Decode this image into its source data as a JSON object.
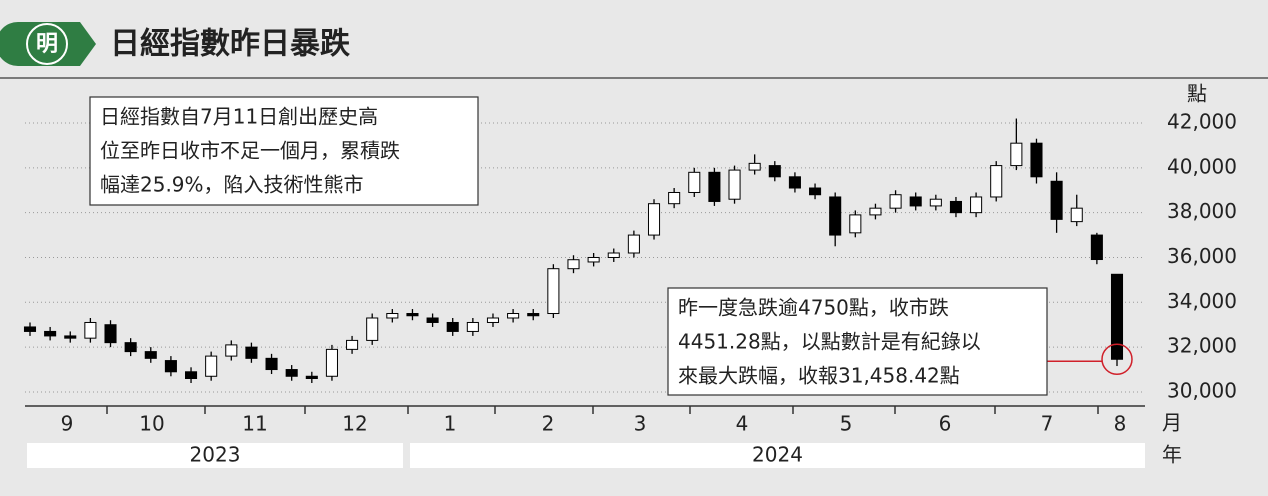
{
  "header": {
    "logo": "明",
    "title": "日經指數昨日暴跌"
  },
  "chart_data": {
    "type": "candlestick",
    "y_label": "點",
    "x_unit": "月",
    "year_unit": "年",
    "ylim": [
      29400,
      43000
    ],
    "yticks": [
      {
        "value": 30000,
        "label": "30,000"
      },
      {
        "value": 32000,
        "label": "32,000"
      },
      {
        "value": 34000,
        "label": "34,000"
      },
      {
        "value": 36000,
        "label": "36,000"
      },
      {
        "value": 38000,
        "label": "38,000"
      },
      {
        "value": 40000,
        "label": "40,000"
      },
      {
        "value": 42000,
        "label": "42,000"
      }
    ],
    "grid": true,
    "months": [
      "9",
      "10",
      "11",
      "12",
      "1",
      "2",
      "3",
      "4",
      "5",
      "6",
      "7",
      "8"
    ],
    "years": [
      "2023",
      "2024"
    ],
    "open": [
      32900,
      32700,
      32500,
      32400,
      33000,
      32200,
      31800,
      31400,
      30900,
      30700,
      31600,
      32000,
      31500,
      31000,
      30700,
      30700,
      31900,
      32300,
      33300,
      33500,
      33300,
      33100,
      32700,
      33100,
      33300,
      33500,
      33500,
      35500,
      35800,
      36000,
      36200,
      37000,
      38400,
      38900,
      39800,
      38600,
      39900,
      40100,
      39600,
      39100,
      38700,
      37100,
      37900,
      38200,
      38700,
      38300,
      38500,
      38000,
      38700,
      40100,
      41100,
      39400,
      37600,
      37000,
      35250
    ],
    "high": [
      33100,
      32900,
      32700,
      33300,
      33200,
      32400,
      32000,
      31600,
      31100,
      31800,
      32300,
      32200,
      31700,
      31200,
      30900,
      32100,
      32500,
      33500,
      33700,
      33700,
      33500,
      33300,
      33300,
      33500,
      33700,
      33700,
      35700,
      36100,
      36200,
      36400,
      37200,
      38600,
      39100,
      40000,
      40000,
      40100,
      40600,
      40300,
      39800,
      39300,
      38900,
      38100,
      38400,
      39000,
      38900,
      38800,
      38700,
      38900,
      40300,
      42200,
      41300,
      39800,
      38800,
      37100,
      35250
    ],
    "low": [
      32500,
      32300,
      32200,
      32200,
      32000,
      31600,
      31300,
      30700,
      30400,
      30500,
      31400,
      31300,
      30800,
      30500,
      30400,
      30500,
      31700,
      32100,
      33100,
      33200,
      32900,
      32500,
      32500,
      32900,
      33100,
      33200,
      33300,
      35300,
      35600,
      35800,
      36000,
      36800,
      38200,
      38700,
      38300,
      38400,
      39700,
      39400,
      38900,
      38600,
      36500,
      36900,
      37700,
      38000,
      38100,
      38100,
      37800,
      37800,
      38500,
      39900,
      39300,
      37100,
      37400,
      35700,
      31156
    ],
    "close": [
      32700,
      32500,
      32400,
      33100,
      32200,
      31800,
      31500,
      30900,
      30600,
      31600,
      32100,
      31500,
      31000,
      30700,
      30600,
      31900,
      32300,
      33300,
      33500,
      33400,
      33100,
      32700,
      33100,
      33300,
      33500,
      33400,
      35500,
      35900,
      36000,
      36200,
      37000,
      38400,
      38900,
      39800,
      38500,
      39900,
      40200,
      39600,
      39100,
      38800,
      37000,
      37900,
      38200,
      38800,
      38300,
      38600,
      38000,
      38700,
      40100,
      41100,
      39600,
      37700,
      38200,
      35909,
      31458.42
    ],
    "annotations": [
      [
        "日經指數自7月11日創出歷史高",
        "位至昨日收市不足一個月，累積跌",
        "幅達25.9%，陷入技術性熊市"
      ],
      [
        "昨一度急跌逾4750點，收市跌",
        "4451.28點，以點數計是有紀錄以",
        "來最大跌幅，收報31,458.42點"
      ]
    ]
  }
}
